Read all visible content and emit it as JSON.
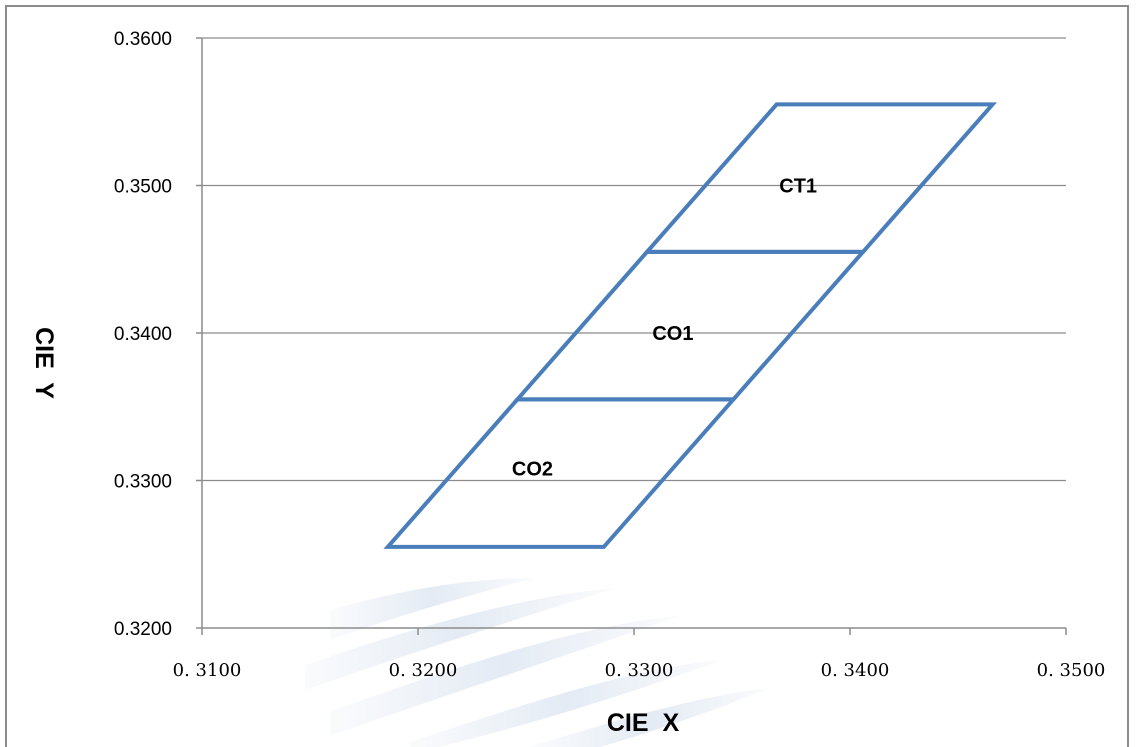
{
  "chart_data": {
    "type": "line",
    "xlabel": "CIE  X",
    "ylabel": "CIE  Y",
    "xlim": [
      0.31,
      0.35
    ],
    "ylim": [
      0.32,
      0.36
    ],
    "x_tick_labels": [
      "0. 3100",
      "0. 3200",
      "0. 3300",
      "0. 3400",
      "0. 3500"
    ],
    "x_tick_values": [
      0.31,
      0.32,
      0.33,
      0.34,
      0.35
    ],
    "y_tick_labels": [
      "0.3200",
      "0.3300",
      "0.3400",
      "0.3500",
      "0.3600"
    ],
    "y_tick_values": [
      0.32,
      0.33,
      0.34,
      0.35,
      0.36
    ],
    "grid": "horizontal",
    "series_color": "#4a7ebb",
    "regions": [
      {
        "name": "CT1",
        "label_at": [
          0.3376,
          0.35
        ],
        "points": [
          [
            0.3306,
            0.3455
          ],
          [
            0.3406,
            0.3455
          ],
          [
            0.3466,
            0.3555
          ],
          [
            0.3366,
            0.3555
          ]
        ]
      },
      {
        "name": "CO1",
        "label_at": [
          0.3318,
          0.34
        ],
        "points": [
          [
            0.3246,
            0.3355
          ],
          [
            0.3346,
            0.3355
          ],
          [
            0.3406,
            0.3455
          ],
          [
            0.3306,
            0.3455
          ]
        ]
      },
      {
        "name": "CO2",
        "label_at": [
          0.3253,
          0.3308
        ],
        "points": [
          [
            0.3186,
            0.3255
          ],
          [
            0.3286,
            0.3255
          ],
          [
            0.3346,
            0.3355
          ],
          [
            0.3246,
            0.3355
          ]
        ]
      }
    ]
  }
}
